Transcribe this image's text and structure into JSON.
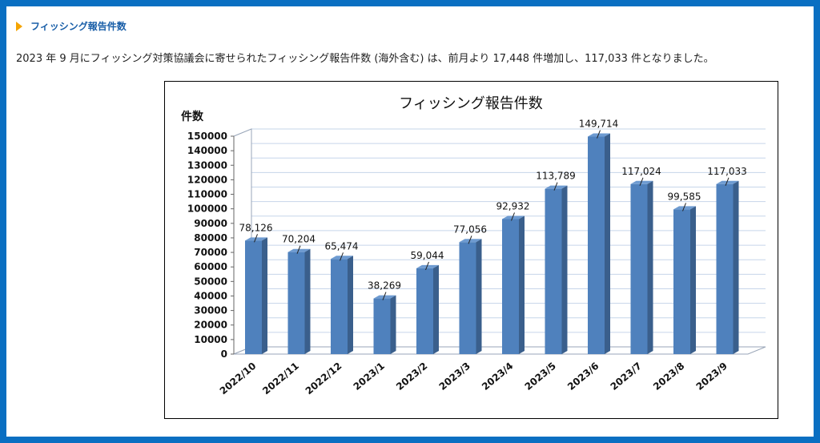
{
  "section": {
    "heading": "フィッシング報告件数",
    "description": "2023 年 9 月にフィッシング対策協議会に寄せられたフィッシング報告件数 (海外含む) は、前月より 17,448 件増加し、117,033 件となりました。"
  },
  "chart_data": {
    "type": "bar",
    "title": "フィッシング報告件数",
    "ylabel": "件数",
    "xlabel": "",
    "categories": [
      "2022/10",
      "2022/11",
      "2022/12",
      "2023/1",
      "2023/2",
      "2023/3",
      "2023/4",
      "2023/5",
      "2023/6",
      "2023/7",
      "2023/8",
      "2023/9"
    ],
    "values": [
      78126,
      70204,
      65474,
      38269,
      59044,
      77056,
      92932,
      113789,
      149714,
      117024,
      99585,
      117033
    ],
    "data_labels": [
      "78,126",
      "70,204",
      "65,474",
      "38,269",
      "59,044",
      "77,056",
      "92,932",
      "113,789",
      "149,714",
      "117,024",
      "99,585",
      "117,033"
    ],
    "ylim": [
      0,
      150000
    ],
    "yticks": [
      "0",
      "10000",
      "20000",
      "30000",
      "40000",
      "50000",
      "60000",
      "70000",
      "80000",
      "90000",
      "100000",
      "110000",
      "120000",
      "130000",
      "140000",
      "150000"
    ],
    "grid": true,
    "style": "3d-column",
    "colors": {
      "bar": "#4f81bd",
      "bar_side": "#3a5f8c",
      "bar_top": "#6e9bd1",
      "gridline": "#c6d5ea",
      "frame": "#1a6fc2"
    }
  }
}
